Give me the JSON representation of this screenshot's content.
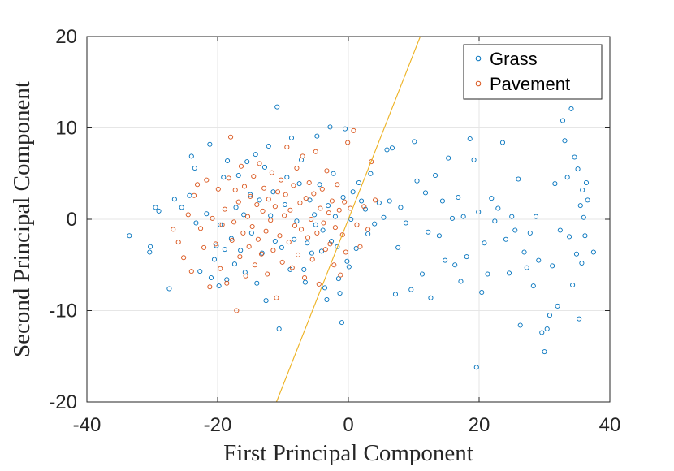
{
  "chart_data": {
    "type": "scatter",
    "xlabel": "First Principal Component",
    "ylabel": "Second Principal Component",
    "xlim": [
      -40,
      40
    ],
    "ylim": [
      -20,
      20
    ],
    "xticks": [
      -40,
      -20,
      0,
      20,
      40
    ],
    "yticks": [
      -20,
      -10,
      0,
      10,
      20
    ],
    "grid": true,
    "legend_position": "top-right",
    "boundary_line": {
      "color": "#EDB120",
      "points": [
        [
          -11,
          -20
        ],
        [
          11,
          20
        ]
      ]
    },
    "series": [
      {
        "name": "Grass",
        "color": "#0072BD",
        "points": [
          [
            -33.5,
            -1.8
          ],
          [
            -30.3,
            -3.0
          ],
          [
            -30.4,
            -3.6
          ],
          [
            -29.5,
            1.3
          ],
          [
            -29.0,
            0.9
          ],
          [
            -27.4,
            -7.6
          ],
          [
            -26.6,
            2.2
          ],
          [
            -25.5,
            1.3
          ],
          [
            -24.3,
            2.6
          ],
          [
            -24.0,
            6.9
          ],
          [
            -23.5,
            5.6
          ],
          [
            -23.3,
            -0.4
          ],
          [
            -22.7,
            -5.7
          ],
          [
            -21.7,
            0.6
          ],
          [
            -21.2,
            8.2
          ],
          [
            -21.0,
            -6.4
          ],
          [
            -20.5,
            -4.4
          ],
          [
            -20.2,
            -2.9
          ],
          [
            -19.8,
            -7.3
          ],
          [
            -19.6,
            -0.6
          ],
          [
            -19.1,
            4.6
          ],
          [
            -18.9,
            -3.3
          ],
          [
            -18.6,
            -6.6
          ],
          [
            -18.5,
            6.4
          ],
          [
            -17.9,
            -2.1
          ],
          [
            -17.4,
            -4.9
          ],
          [
            -17.2,
            1.3
          ],
          [
            -16.8,
            4.8
          ],
          [
            -16.5,
            -3.4
          ],
          [
            -16.0,
            0.5
          ],
          [
            -15.8,
            -5.8
          ],
          [
            -15.5,
            6.3
          ],
          [
            -15.0,
            2.7
          ],
          [
            -14.8,
            -1.5
          ],
          [
            -14.2,
            7.1
          ],
          [
            -14.0,
            -7.0
          ],
          [
            -13.6,
            2.1
          ],
          [
            -13.2,
            -3.7
          ],
          [
            -12.8,
            5.7
          ],
          [
            -12.6,
            -8.9
          ],
          [
            -12.2,
            8.0
          ],
          [
            -11.9,
            0.4
          ],
          [
            -11.5,
            3.0
          ],
          [
            -11.2,
            -2.4
          ],
          [
            -10.9,
            12.3
          ],
          [
            -10.6,
            -12.0
          ],
          [
            -10.2,
            -3.1
          ],
          [
            -9.7,
            1.6
          ],
          [
            -9.4,
            4.6
          ],
          [
            -8.9,
            -5.5
          ],
          [
            -8.7,
            8.9
          ],
          [
            -8.3,
            -2.2
          ],
          [
            -7.9,
            -0.2
          ],
          [
            -7.5,
            3.9
          ],
          [
            -7.2,
            6.5
          ],
          [
            -6.8,
            -5.5
          ],
          [
            -6.6,
            -6.9
          ],
          [
            -6.3,
            -2.6
          ],
          [
            -5.9,
            2.1
          ],
          [
            -5.6,
            -3.7
          ],
          [
            -5.2,
            0.5
          ],
          [
            -5.0,
            -0.6
          ],
          [
            -4.8,
            9.1
          ],
          [
            -4.4,
            3.8
          ],
          [
            -4.1,
            -3.5
          ],
          [
            -3.9,
            -1.2
          ],
          [
            -3.6,
            -7.5
          ],
          [
            -3.3,
            -8.8
          ],
          [
            -3.1,
            1.5
          ],
          [
            -2.8,
            10.1
          ],
          [
            -2.6,
            -2.4
          ],
          [
            -2.3,
            5.0
          ],
          [
            -2.0,
            0.3
          ],
          [
            -1.7,
            -3.0
          ],
          [
            -1.5,
            -6.5
          ],
          [
            -1.3,
            -8.1
          ],
          [
            -1.0,
            -11.3
          ],
          [
            -0.8,
            2.4
          ],
          [
            -0.5,
            9.9
          ],
          [
            -0.2,
            -4.6
          ],
          [
            0.1,
            -5.2
          ],
          [
            0.4,
            0.0
          ],
          [
            0.7,
            3.0
          ],
          [
            1.2,
            -3.2
          ],
          [
            1.6,
            4.0
          ],
          [
            2.0,
            2.0
          ],
          [
            2.6,
            1.1
          ],
          [
            3.0,
            -1.6
          ],
          [
            3.4,
            5.0
          ],
          [
            4.0,
            -0.5
          ],
          [
            4.7,
            1.8
          ],
          [
            5.4,
            0.2
          ],
          [
            5.9,
            7.6
          ],
          [
            6.3,
            2.0
          ],
          [
            6.7,
            7.8
          ],
          [
            7.2,
            -8.2
          ],
          [
            7.6,
            -3.1
          ],
          [
            8.0,
            1.3
          ],
          [
            8.8,
            -0.4
          ],
          [
            9.6,
            -7.7
          ],
          [
            10.1,
            8.5
          ],
          [
            10.5,
            4.2
          ],
          [
            11.3,
            -6.0
          ],
          [
            11.8,
            2.9
          ],
          [
            12.2,
            -1.4
          ],
          [
            12.6,
            -8.6
          ],
          [
            13.3,
            4.8
          ],
          [
            13.9,
            -1.8
          ],
          [
            14.4,
            2.0
          ],
          [
            14.8,
            -4.5
          ],
          [
            15.3,
            6.7
          ],
          [
            15.9,
            0.1
          ],
          [
            16.3,
            -5.0
          ],
          [
            16.8,
            2.4
          ],
          [
            17.2,
            -6.8
          ],
          [
            17.6,
            0.3
          ],
          [
            18.1,
            -4.1
          ],
          [
            18.6,
            8.8
          ],
          [
            19.2,
            6.5
          ],
          [
            19.6,
            -16.2
          ],
          [
            19.9,
            0.8
          ],
          [
            20.4,
            -8.0
          ],
          [
            20.8,
            -2.6
          ],
          [
            21.3,
            -6.0
          ],
          [
            21.9,
            2.3
          ],
          [
            22.4,
            -0.2
          ],
          [
            22.9,
            1.2
          ],
          [
            23.6,
            8.4
          ],
          [
            24.1,
            -2.2
          ],
          [
            24.6,
            -5.9
          ],
          [
            25.0,
            0.3
          ],
          [
            25.5,
            -1.2
          ],
          [
            26.0,
            4.4
          ],
          [
            26.3,
            -11.6
          ],
          [
            26.9,
            -3.6
          ],
          [
            27.3,
            -5.3
          ],
          [
            27.8,
            -1.5
          ],
          [
            28.3,
            -7.3
          ],
          [
            28.7,
            0.3
          ],
          [
            29.1,
            -4.5
          ],
          [
            29.6,
            -12.4
          ],
          [
            30.0,
            -14.5
          ],
          [
            30.4,
            -12.0
          ],
          [
            30.8,
            -10.5
          ],
          [
            31.2,
            -5.1
          ],
          [
            31.6,
            3.9
          ],
          [
            32.0,
            -9.5
          ],
          [
            32.4,
            -1.2
          ],
          [
            32.8,
            10.8
          ],
          [
            33.1,
            8.6
          ],
          [
            33.5,
            4.6
          ],
          [
            33.8,
            -1.9
          ],
          [
            34.1,
            12.1
          ],
          [
            34.3,
            -7.2
          ],
          [
            34.6,
            6.8
          ],
          [
            34.9,
            -3.8
          ],
          [
            35.1,
            5.5
          ],
          [
            35.3,
            -10.9
          ],
          [
            35.5,
            1.5
          ],
          [
            35.7,
            -4.8
          ],
          [
            35.8,
            3.2
          ],
          [
            36.0,
            0.2
          ],
          [
            36.2,
            -1.8
          ],
          [
            36.4,
            4.0
          ],
          [
            36.6,
            2.1
          ],
          [
            37.5,
            -3.6
          ]
        ]
      },
      {
        "name": "Pavement",
        "color": "#D95319",
        "points": [
          [
            -26.8,
            -1.1
          ],
          [
            -26.0,
            -2.5
          ],
          [
            -25.2,
            -4.2
          ],
          [
            -24.5,
            0.5
          ],
          [
            -24.0,
            -5.7
          ],
          [
            -23.6,
            2.6
          ],
          [
            -23.1,
            3.8
          ],
          [
            -22.6,
            -1.0
          ],
          [
            -22.1,
            -3.1
          ],
          [
            -21.7,
            4.3
          ],
          [
            -21.2,
            -7.4
          ],
          [
            -20.8,
            0.1
          ],
          [
            -20.3,
            -2.7
          ],
          [
            -19.9,
            3.3
          ],
          [
            -19.6,
            -5.4
          ],
          [
            -19.3,
            -0.6
          ],
          [
            -18.9,
            1.1
          ],
          [
            -18.6,
            -7.0
          ],
          [
            -18.3,
            4.5
          ],
          [
            -18.0,
            9.0
          ],
          [
            -17.8,
            -2.3
          ],
          [
            -17.5,
            -0.3
          ],
          [
            -17.3,
            3.2
          ],
          [
            -17.1,
            -10.0
          ],
          [
            -16.8,
            1.9
          ],
          [
            -16.6,
            -4.1
          ],
          [
            -16.4,
            5.8
          ],
          [
            -16.1,
            -1.5
          ],
          [
            -15.9,
            3.6
          ],
          [
            -15.7,
            -6.2
          ],
          [
            -15.4,
            0.3
          ],
          [
            -15.2,
            -3.0
          ],
          [
            -15.0,
            2.5
          ],
          [
            -14.7,
            -0.8
          ],
          [
            -14.5,
            4.7
          ],
          [
            -14.3,
            -5.0
          ],
          [
            -14.0,
            1.6
          ],
          [
            -13.8,
            -2.2
          ],
          [
            -13.6,
            6.1
          ],
          [
            -13.3,
            -3.8
          ],
          [
            -13.1,
            0.9
          ],
          [
            -12.9,
            3.4
          ],
          [
            -12.6,
            -1.3
          ],
          [
            -12.4,
            -6.0
          ],
          [
            -12.2,
            2.2
          ],
          [
            -11.9,
            -0.1
          ],
          [
            -11.7,
            5.1
          ],
          [
            -11.5,
            -3.4
          ],
          [
            -11.2,
            1.4
          ],
          [
            -11.0,
            -8.6
          ],
          [
            -10.8,
            3.0
          ],
          [
            -10.5,
            -1.8
          ],
          [
            -10.3,
            4.3
          ],
          [
            -10.1,
            -4.7
          ],
          [
            -9.8,
            0.4
          ],
          [
            -9.6,
            2.7
          ],
          [
            -9.4,
            7.9
          ],
          [
            -9.1,
            -2.5
          ],
          [
            -8.9,
            1.0
          ],
          [
            -8.6,
            -5.3
          ],
          [
            -8.4,
            3.7
          ],
          [
            -8.2,
            -0.7
          ],
          [
            -7.9,
            5.6
          ],
          [
            -7.7,
            -3.9
          ],
          [
            -7.4,
            1.8
          ],
          [
            -7.2,
            -1.1
          ],
          [
            -7.0,
            6.9
          ],
          [
            -6.7,
            -6.4
          ],
          [
            -6.5,
            2.3
          ],
          [
            -6.2,
            -2.0
          ],
          [
            -6.0,
            4.0
          ],
          [
            -5.7,
            0.0
          ],
          [
            -5.5,
            -4.4
          ],
          [
            -5.3,
            2.8
          ],
          [
            -5.0,
            7.4
          ],
          [
            -4.8,
            -1.5
          ],
          [
            -4.5,
            -7.1
          ],
          [
            -4.3,
            1.2
          ],
          [
            -4.0,
            3.3
          ],
          [
            -3.8,
            -0.4
          ],
          [
            -3.5,
            -3.3
          ],
          [
            -3.3,
            5.3
          ],
          [
            -3.0,
            0.7
          ],
          [
            -2.8,
            -2.7
          ],
          [
            -2.5,
            2.0
          ],
          [
            -2.2,
            -5.0
          ],
          [
            -2.0,
            -0.9
          ],
          [
            -1.7,
            3.8
          ],
          [
            -1.4,
            1.0
          ],
          [
            -1.2,
            -6.1
          ],
          [
            -0.9,
            -1.7
          ],
          [
            -0.6,
            1.9
          ],
          [
            -0.4,
            -3.6
          ],
          [
            -0.1,
            8.4
          ],
          [
            0.3,
            1.2
          ],
          [
            0.8,
            9.7
          ],
          [
            1.3,
            -0.6
          ],
          [
            1.8,
            -3.0
          ],
          [
            2.4,
            1.4
          ],
          [
            3.0,
            -1.1
          ],
          [
            3.5,
            6.3
          ],
          [
            4.1,
            2.1
          ]
        ]
      }
    ]
  }
}
